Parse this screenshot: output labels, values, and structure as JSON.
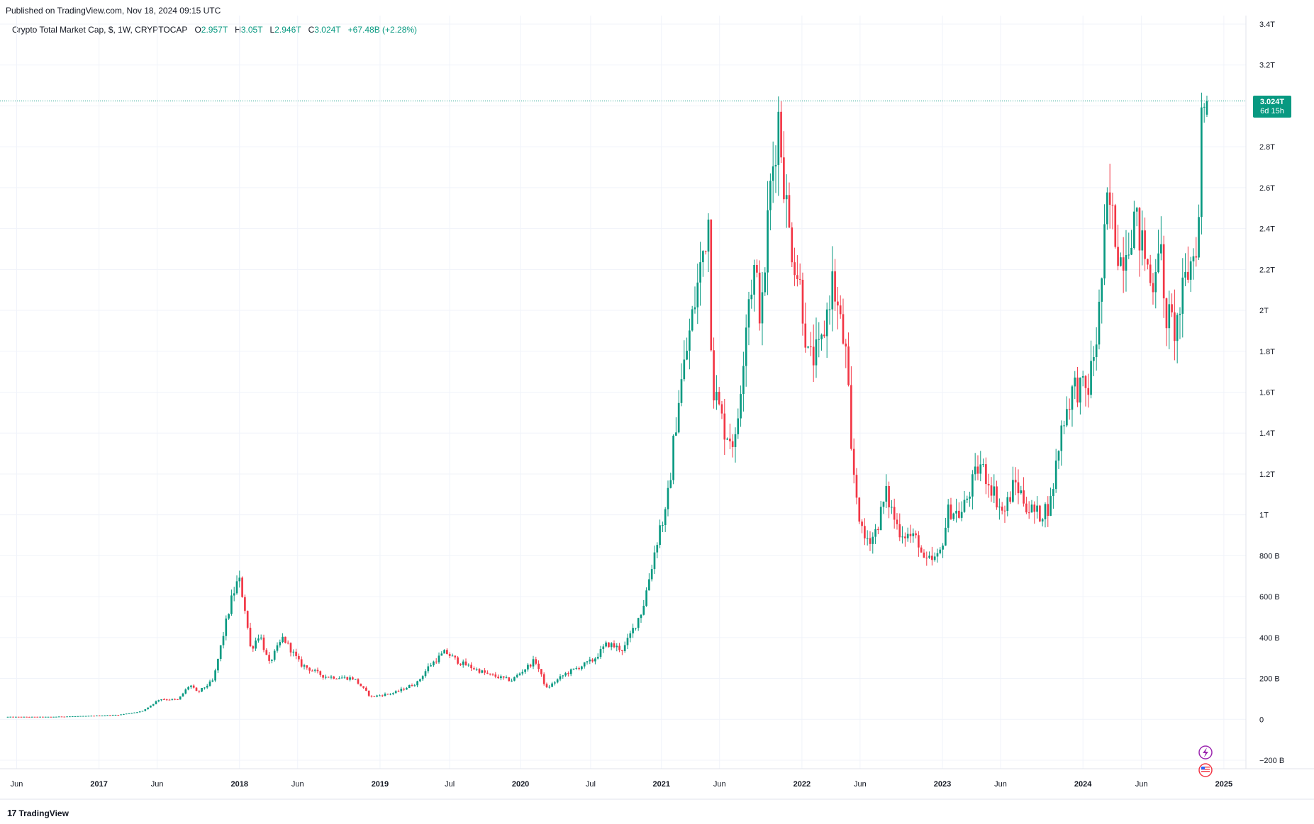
{
  "header": {
    "published": "Published on TradingView.com, Nov 18, 2024 09:15 UTC"
  },
  "legend": {
    "symbol": "Crypto Total Market Cap, $, 1W, CRYPTOCAP",
    "o_label": "O",
    "o_value": "2.957T",
    "h_label": "H",
    "h_value": "3.05T",
    "l_label": "L",
    "l_value": "2.946T",
    "c_label": "C",
    "c_value": "3.024T",
    "change": "+67.48B (+2.28%)"
  },
  "price_tag": {
    "value": "3.024T",
    "countdown": "6d 15h"
  },
  "footer": {
    "brand": "TradingView"
  },
  "colors": {
    "up": "#089981",
    "down": "#f23645",
    "grid": "#f0f3fa",
    "price_line": "#089981"
  },
  "icons": [
    "lightning-icon",
    "us-flag-icon"
  ],
  "chart_data": {
    "type": "candlestick",
    "interval": "1W",
    "y_unit": "USD",
    "y_ticks": [
      "3.4T",
      "3.2T",
      "3T",
      "2.8T",
      "2.6T",
      "2.4T",
      "2.2T",
      "2T",
      "1.8T",
      "1.6T",
      "1.4T",
      "1.2T",
      "1T",
      "800 B",
      "600 B",
      "400 B",
      "200 B",
      "0",
      "−200 B"
    ],
    "y_tick_values": [
      3.4,
      3.2,
      3.0,
      2.8,
      2.6,
      2.4,
      2.2,
      2.0,
      1.8,
      1.6,
      1.4,
      1.2,
      1.0,
      0.8,
      0.6,
      0.4,
      0.2,
      0,
      -0.2
    ],
    "ylim": [
      -0.2,
      3.4
    ],
    "x_ticks": [
      {
        "label": "Jun",
        "date": "2016-06-01",
        "bold": false
      },
      {
        "label": "2017",
        "date": "2017-01-01",
        "bold": true
      },
      {
        "label": "Jun",
        "date": "2017-06-01",
        "bold": false
      },
      {
        "label": "2018",
        "date": "2018-01-01",
        "bold": true
      },
      {
        "label": "Jun",
        "date": "2018-06-01",
        "bold": false
      },
      {
        "label": "2019",
        "date": "2019-01-01",
        "bold": true
      },
      {
        "label": "Jul",
        "date": "2019-07-01",
        "bold": false
      },
      {
        "label": "2020",
        "date": "2020-01-01",
        "bold": true
      },
      {
        "label": "Jul",
        "date": "2020-07-01",
        "bold": false
      },
      {
        "label": "2021",
        "date": "2021-01-01",
        "bold": true
      },
      {
        "label": "Jun",
        "date": "2021-06-01",
        "bold": false
      },
      {
        "label": "2022",
        "date": "2022-01-01",
        "bold": true
      },
      {
        "label": "Jun",
        "date": "2022-06-01",
        "bold": false
      },
      {
        "label": "2023",
        "date": "2023-01-01",
        "bold": true
      },
      {
        "label": "Jun",
        "date": "2023-06-01",
        "bold": false
      },
      {
        "label": "2024",
        "date": "2024-01-01",
        "bold": true
      },
      {
        "label": "Jun",
        "date": "2024-06-01",
        "bold": false
      },
      {
        "label": "2025",
        "date": "2025-01-01",
        "bold": true
      }
    ],
    "xlim": [
      "2016-05-09",
      "2025-02-20"
    ],
    "anchor_closes_trillions": [
      [
        "2016-05-09",
        0.012
      ],
      [
        "2016-09-01",
        0.012
      ],
      [
        "2016-12-01",
        0.016
      ],
      [
        "2017-03-01",
        0.022
      ],
      [
        "2017-05-01",
        0.04
      ],
      [
        "2017-06-15",
        0.1
      ],
      [
        "2017-08-01",
        0.095
      ],
      [
        "2017-09-01",
        0.17
      ],
      [
        "2017-09-20",
        0.13
      ],
      [
        "2017-11-01",
        0.19
      ],
      [
        "2017-12-01",
        0.45
      ],
      [
        "2017-12-20",
        0.6
      ],
      [
        "2018-01-06",
        0.69
      ],
      [
        "2018-01-20",
        0.57
      ],
      [
        "2018-02-06",
        0.34
      ],
      [
        "2018-03-01",
        0.42
      ],
      [
        "2018-03-25",
        0.27
      ],
      [
        "2018-05-01",
        0.4
      ],
      [
        "2018-06-15",
        0.27
      ],
      [
        "2018-08-15",
        0.21
      ],
      [
        "2018-11-01",
        0.2
      ],
      [
        "2018-12-15",
        0.11
      ],
      [
        "2019-02-15",
        0.13
      ],
      [
        "2019-04-15",
        0.18
      ],
      [
        "2019-05-15",
        0.26
      ],
      [
        "2019-06-26",
        0.33
      ],
      [
        "2019-08-01",
        0.28
      ],
      [
        "2019-10-15",
        0.22
      ],
      [
        "2019-12-15",
        0.19
      ],
      [
        "2020-02-15",
        0.29
      ],
      [
        "2020-03-15",
        0.15
      ],
      [
        "2020-05-01",
        0.22
      ],
      [
        "2020-07-15",
        0.29
      ],
      [
        "2020-08-20",
        0.37
      ],
      [
        "2020-10-01",
        0.34
      ],
      [
        "2020-11-20",
        0.54
      ],
      [
        "2021-01-05",
        0.95
      ],
      [
        "2021-01-20",
        1.0
      ],
      [
        "2021-02-20",
        1.55
      ],
      [
        "2021-04-10",
        2.1
      ],
      [
        "2021-05-10",
        2.45
      ],
      [
        "2021-05-20",
        1.65
      ],
      [
        "2021-06-20",
        1.42
      ],
      [
        "2021-07-20",
        1.35
      ],
      [
        "2021-08-20",
        2.05
      ],
      [
        "2021-09-07",
        2.2
      ],
      [
        "2021-09-25",
        1.95
      ],
      [
        "2021-10-15",
        2.55
      ],
      [
        "2021-11-08",
        2.95
      ],
      [
        "2021-12-04",
        2.4
      ],
      [
        "2022-01-05",
        2.1
      ],
      [
        "2022-01-25",
        1.75
      ],
      [
        "2022-02-25",
        1.8
      ],
      [
        "2022-03-28",
        2.15
      ],
      [
        "2022-05-05",
        1.75
      ],
      [
        "2022-05-15",
        1.3
      ],
      [
        "2022-06-15",
        0.88
      ],
      [
        "2022-07-15",
        0.9
      ],
      [
        "2022-08-15",
        1.1
      ],
      [
        "2022-09-15",
        0.93
      ],
      [
        "2022-11-08",
        0.87
      ],
      [
        "2022-11-20",
        0.76
      ],
      [
        "2022-12-30",
        0.79
      ],
      [
        "2023-01-25",
        1.03
      ],
      [
        "2023-02-25",
        1.0
      ],
      [
        "2023-04-15",
        1.25
      ],
      [
        "2023-05-15",
        1.14
      ],
      [
        "2023-06-15",
        1.0
      ],
      [
        "2023-07-15",
        1.16
      ],
      [
        "2023-08-20",
        1.03
      ],
      [
        "2023-09-15",
        1.0
      ],
      [
        "2023-10-15",
        1.05
      ],
      [
        "2023-11-15",
        1.45
      ],
      [
        "2023-12-15",
        1.63
      ],
      [
        "2024-01-20",
        1.6
      ],
      [
        "2024-02-15",
        1.9
      ],
      [
        "2024-03-13",
        2.55
      ],
      [
        "2024-04-15",
        2.25
      ],
      [
        "2024-05-20",
        2.45
      ],
      [
        "2024-06-20",
        2.25
      ],
      [
        "2024-07-05",
        2.1
      ],
      [
        "2024-07-25",
        2.4
      ],
      [
        "2024-08-05",
        2.0
      ],
      [
        "2024-09-05",
        1.9
      ],
      [
        "2024-10-01",
        2.15
      ],
      [
        "2024-10-25",
        2.3
      ],
      [
        "2024-11-05",
        2.45
      ],
      [
        "2024-11-11",
        2.957
      ],
      [
        "2024-11-18",
        3.024
      ]
    ],
    "last_candle": {
      "date": "2024-11-18",
      "open": 2.957,
      "high": 3.05,
      "low": 2.946,
      "close": 3.024
    }
  }
}
